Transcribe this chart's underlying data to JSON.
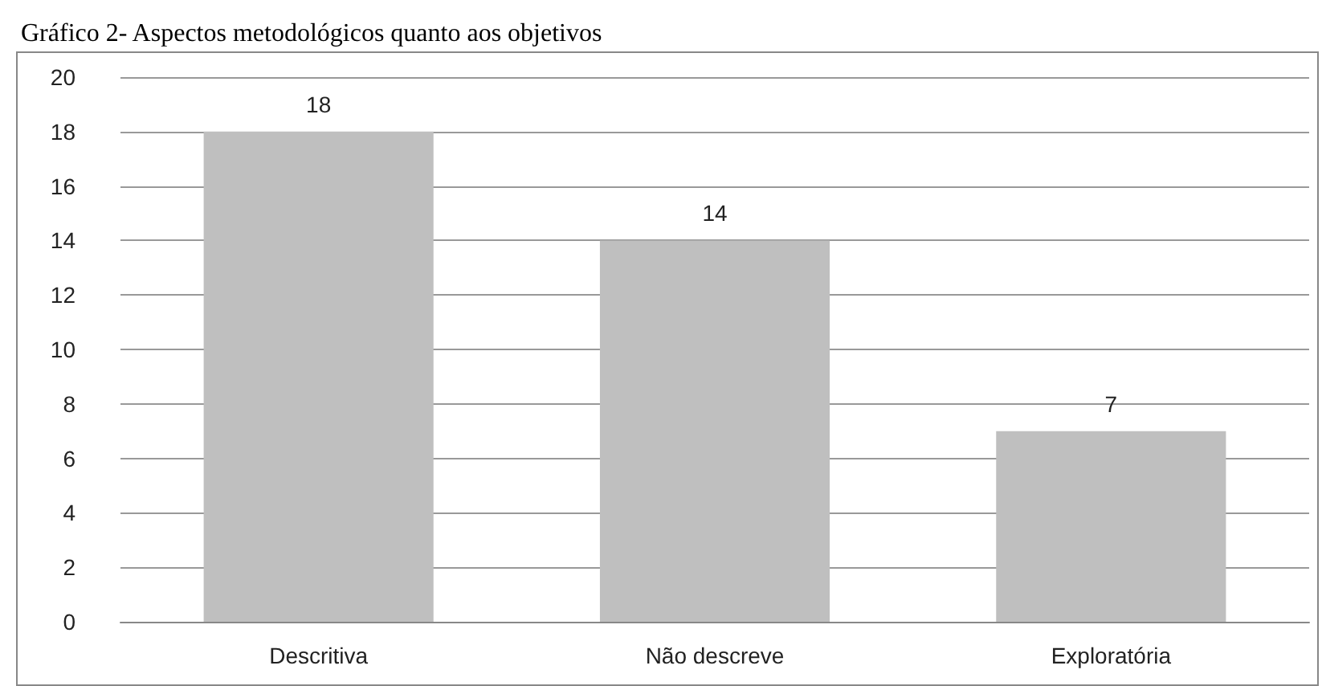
{
  "chart_data": {
    "type": "bar",
    "title": "Gráfico 2- Aspectos metodológicos quanto aos objetivos",
    "categories": [
      "Descritiva",
      "Não descreve",
      "Exploratória"
    ],
    "values": [
      18,
      14,
      7
    ],
    "color": "#bfbfbf",
    "data_labels": true,
    "ylim": [
      0,
      20
    ],
    "yticks": [
      0,
      2,
      4,
      6,
      8,
      10,
      12,
      14,
      16,
      18,
      20
    ],
    "grid": "y"
  }
}
